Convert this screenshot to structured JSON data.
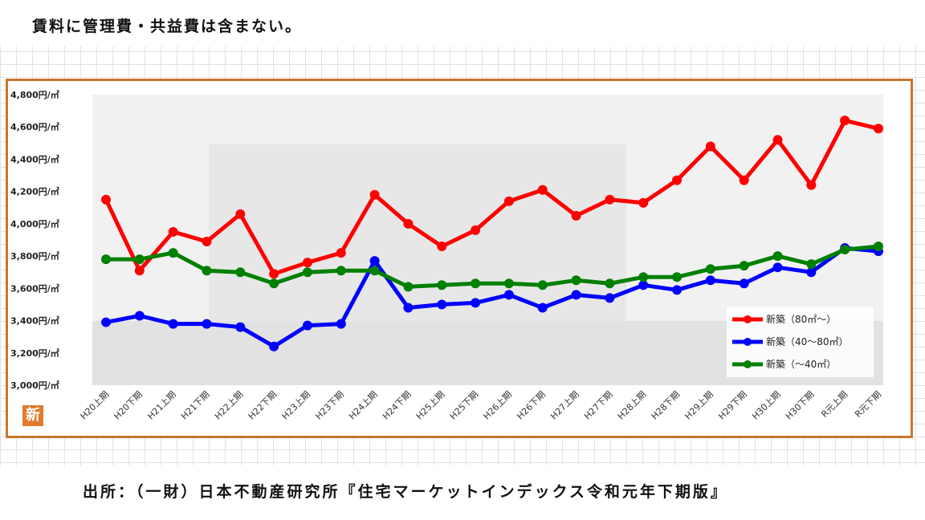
{
  "header": {
    "note": "賃料に管理費・共益費は含まない。"
  },
  "footer": {
    "source": "出所：（一財）日本不動産研究所『住宅マーケットインデックス令和元年下期版』"
  },
  "logo": {
    "text": "新"
  },
  "colors": {
    "frame": "#c8772a",
    "series_red": "#ff0000",
    "series_blue": "#0000ff",
    "series_green": "#008000"
  },
  "chart_data": {
    "type": "line",
    "title": "",
    "xlabel": "",
    "ylabel": "",
    "ylim": [
      3000,
      4800
    ],
    "y_ticks": [
      3000,
      3200,
      3400,
      3600,
      3800,
      4000,
      4200,
      4400,
      4600,
      4800
    ],
    "y_tick_labels": [
      "3,000円/㎡",
      "3,200円/㎡",
      "3,400円/㎡",
      "3,600円/㎡",
      "3,800円/㎡",
      "4,000円/㎡",
      "4,200円/㎡",
      "4,400円/㎡",
      "4,600円/㎡",
      "4,800円/㎡"
    ],
    "categories": [
      "H20上期",
      "H20下期",
      "H21上期",
      "H21下期",
      "H22上期",
      "H22下期",
      "H23上期",
      "H23下期",
      "H24上期",
      "H24下期",
      "H25上期",
      "H25下期",
      "H26上期",
      "H26下期",
      "H27上期",
      "H27下期",
      "H28上期",
      "H28下期",
      "H29上期",
      "H29下期",
      "H30上期",
      "H30下期",
      "R元上期",
      "R元下期"
    ],
    "grid": false,
    "legend_position": "bottom-right",
    "series": [
      {
        "name": "新築（80㎡～）",
        "color": "#ff0000",
        "values": [
          4150,
          3710,
          3950,
          3890,
          4060,
          3690,
          3760,
          3820,
          4180,
          4000,
          3860,
          3960,
          4140,
          4210,
          4050,
          4150,
          4130,
          4270,
          4480,
          4270,
          4520,
          4240,
          4640,
          4590
        ]
      },
      {
        "name": "新築（40～80㎡）",
        "color": "#0000ff",
        "values": [
          3390,
          3430,
          3380,
          3380,
          3360,
          3240,
          3370,
          3380,
          3770,
          3480,
          3500,
          3510,
          3560,
          3480,
          3560,
          3540,
          3620,
          3590,
          3650,
          3630,
          3730,
          3700,
          3850,
          3830
        ]
      },
      {
        "name": "新築（～40㎡）",
        "color": "#008000",
        "values": [
          3780,
          3780,
          3820,
          3710,
          3700,
          3630,
          3700,
          3710,
          3710,
          3610,
          3620,
          3630,
          3630,
          3620,
          3650,
          3630,
          3670,
          3670,
          3720,
          3740,
          3800,
          3750,
          3840,
          3860
        ]
      }
    ]
  }
}
